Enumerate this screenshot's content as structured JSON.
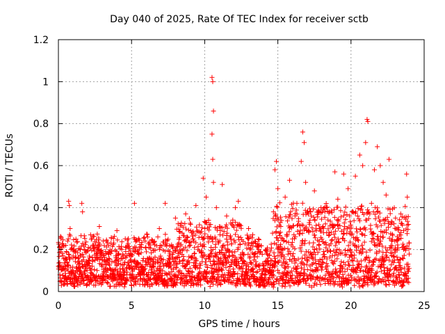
{
  "chart_data": {
    "type": "scatter",
    "title": "Day 040 of 2025, Rate Of TEC Index for receiver sctb",
    "xlabel": "GPS time / hours",
    "ylabel": "ROTI / TECUs",
    "xlim": [
      0,
      25
    ],
    "ylim": [
      0,
      1.2
    ],
    "x_ticks": [
      0,
      5,
      10,
      15,
      20,
      25
    ],
    "y_ticks": [
      0,
      0.2,
      0.4,
      0.6,
      0.8,
      1.0,
      1.2
    ],
    "x_tick_labels": [
      "0",
      "5",
      "10",
      "15",
      "20",
      "25"
    ],
    "y_tick_labels": [
      "0",
      "0.2",
      "0.4",
      "0.6",
      "0.8",
      "1",
      "1.2"
    ],
    "grid": true,
    "marker": "+",
    "color": "#ff0000",
    "data_coverage_hours": [
      0,
      24
    ],
    "series": [
      {
        "name": "ROTI",
        "points": [
          [
            0.1,
            0.08
          ],
          [
            0.2,
            0.12
          ],
          [
            0.3,
            0.18
          ],
          [
            0.4,
            0.05
          ],
          [
            0.5,
            0.22
          ],
          [
            0.6,
            0.14
          ],
          [
            0.7,
            0.43
          ],
          [
            0.75,
            0.41
          ],
          [
            0.8,
            0.3
          ],
          [
            0.9,
            0.09
          ],
          [
            1.0,
            0.16
          ],
          [
            1.1,
            0.04
          ],
          [
            1.2,
            0.25
          ],
          [
            1.4,
            0.11
          ],
          [
            1.6,
            0.42
          ],
          [
            1.65,
            0.38
          ],
          [
            1.8,
            0.2
          ],
          [
            2.0,
            0.13
          ],
          [
            2.2,
            0.27
          ],
          [
            2.5,
            0.07
          ],
          [
            2.8,
            0.31
          ],
          [
            3.0,
            0.15
          ],
          [
            3.3,
            0.24
          ],
          [
            3.6,
            0.1
          ],
          [
            4.0,
            0.29
          ],
          [
            4.3,
            0.06
          ],
          [
            4.6,
            0.21
          ],
          [
            5.0,
            0.12
          ],
          [
            5.2,
            0.42
          ],
          [
            5.5,
            0.18
          ],
          [
            5.8,
            0.08
          ],
          [
            6.1,
            0.26
          ],
          [
            6.5,
            0.14
          ],
          [
            6.9,
            0.3
          ],
          [
            7.3,
            0.42
          ],
          [
            7.6,
            0.19
          ],
          [
            8.0,
            0.35
          ],
          [
            8.3,
            0.09
          ],
          [
            8.7,
            0.37
          ],
          [
            9.0,
            0.22
          ],
          [
            9.4,
            0.41
          ],
          [
            9.7,
            0.28
          ],
          [
            9.9,
            0.54
          ],
          [
            10.1,
            0.45
          ],
          [
            10.5,
            1.02
          ],
          [
            10.55,
            1.0
          ],
          [
            10.6,
            0.86
          ],
          [
            10.5,
            0.75
          ],
          [
            10.55,
            0.63
          ],
          [
            10.6,
            0.52
          ],
          [
            10.8,
            0.4
          ],
          [
            11.0,
            0.31
          ],
          [
            11.2,
            0.51
          ],
          [
            11.5,
            0.36
          ],
          [
            11.8,
            0.25
          ],
          [
            12.1,
            0.4
          ],
          [
            12.3,
            0.43
          ],
          [
            12.6,
            0.18
          ],
          [
            13.0,
            0.3
          ],
          [
            13.3,
            0.11
          ],
          [
            13.7,
            0.2
          ],
          [
            14.0,
            0.05
          ],
          [
            14.2,
            0.14
          ],
          [
            14.5,
            0.09
          ],
          [
            14.7,
            0.38
          ],
          [
            14.8,
            0.58
          ],
          [
            14.9,
            0.62
          ],
          [
            15.0,
            0.49
          ],
          [
            15.2,
            0.31
          ],
          [
            15.5,
            0.45
          ],
          [
            15.8,
            0.53
          ],
          [
            16.1,
            0.27
          ],
          [
            16.3,
            0.42
          ],
          [
            16.6,
            0.62
          ],
          [
            16.7,
            0.76
          ],
          [
            16.8,
            0.71
          ],
          [
            16.9,
            0.52
          ],
          [
            17.2,
            0.34
          ],
          [
            17.5,
            0.48
          ],
          [
            17.8,
            0.22
          ],
          [
            18.1,
            0.39
          ],
          [
            18.5,
            0.28
          ],
          [
            18.9,
            0.57
          ],
          [
            19.1,
            0.44
          ],
          [
            19.5,
            0.56
          ],
          [
            19.8,
            0.49
          ],
          [
            20.0,
            0.3
          ],
          [
            20.3,
            0.55
          ],
          [
            20.6,
            0.65
          ],
          [
            20.8,
            0.6
          ],
          [
            21.0,
            0.71
          ],
          [
            21.1,
            0.82
          ],
          [
            21.15,
            0.81
          ],
          [
            21.4,
            0.42
          ],
          [
            21.6,
            0.58
          ],
          [
            21.8,
            0.69
          ],
          [
            22.0,
            0.6
          ],
          [
            22.2,
            0.52
          ],
          [
            22.4,
            0.46
          ],
          [
            22.6,
            0.63
          ],
          [
            22.8,
            0.33
          ],
          [
            23.0,
            0.24
          ],
          [
            23.2,
            0.15
          ],
          [
            23.4,
            0.37
          ],
          [
            23.6,
            0.29
          ],
          [
            23.8,
            0.56
          ],
          [
            23.85,
            0.45
          ],
          [
            23.9,
            0.12
          ]
        ]
      }
    ]
  }
}
